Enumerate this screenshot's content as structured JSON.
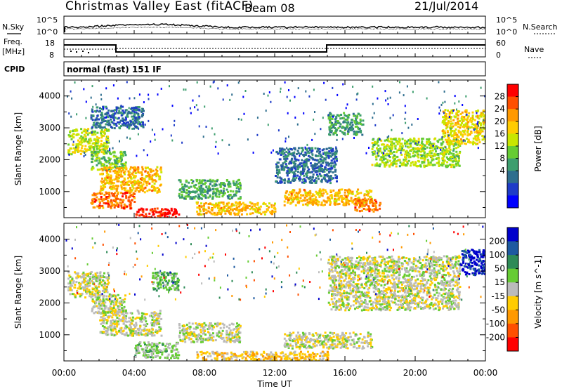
{
  "header": {
    "title": "Christmas Valley East (fitACF)",
    "beam": "Beam 08",
    "date": "21/Jul/2014"
  },
  "params": {
    "nsky_label": "N.Sky",
    "nsearch_label": "N.Search",
    "freq_label_1": "Freq.",
    "freq_label_2": "[MHz]",
    "nave_label": "Nave",
    "cpid_label": "CPID",
    "cpid_value": "normal (fast) 151 IF",
    "noise_ticks_left": [
      "10^5",
      "10^0"
    ],
    "noise_ticks_right": [
      "10^5",
      "10^0"
    ],
    "freq_ticks": [
      "18",
      "8"
    ],
    "nave_ticks": [
      "60",
      "0"
    ]
  },
  "colorbars": {
    "power": {
      "label": "Power [dB]",
      "ticks": [
        "28",
        "24",
        "20",
        "16",
        "12",
        "8",
        "4"
      ],
      "colors": [
        "#ff0000",
        "#ff5000",
        "#ff9900",
        "#ffcc00",
        "#c8e600",
        "#66cc33",
        "#3d9e6e",
        "#2e6e8e",
        "#1e3cc8",
        "#0000ff"
      ]
    },
    "velocity": {
      "label": "Velocity [m s^-1]",
      "ticks": [
        "200",
        "100",
        "50",
        "15",
        "-15",
        "-50",
        "-100",
        "-200"
      ],
      "colors": [
        "#0000cc",
        "#1e5aa0",
        "#2e8b57",
        "#66cc33",
        "#bbbbbb",
        "#ffcc00",
        "#ff9900",
        "#ff5000",
        "#ff0000"
      ]
    }
  },
  "chart_data": [
    {
      "type": "heatmap",
      "title": "Power",
      "xlabel": "Time UT",
      "ylabel": "Slant Range [km]",
      "x_ticks": [
        "00:00",
        "04:00",
        "08:00",
        "12:00",
        "16:00",
        "20:00",
        "00:00"
      ],
      "y_ticks": [
        1000,
        2000,
        3000,
        4000
      ],
      "xlim_hours": [
        0,
        24
      ],
      "ylim_km": [
        180,
        4500
      ],
      "scatter_regions": [
        {
          "t": [
            0.2,
            2.5
          ],
          "r": [
            2200,
            3000
          ],
          "value_db": 18
        },
        {
          "t": [
            1.5,
            3.5
          ],
          "r": [
            1700,
            2300
          ],
          "value_db": 14
        },
        {
          "t": [
            1.5,
            4.5
          ],
          "r": [
            3000,
            3700
          ],
          "value_db": 8
        },
        {
          "t": [
            2.0,
            5.5
          ],
          "r": [
            1000,
            1800
          ],
          "value_db": 22
        },
        {
          "t": [
            1.5,
            4.0
          ],
          "r": [
            500,
            1000
          ],
          "value_db": 26
        },
        {
          "t": [
            4.0,
            6.5
          ],
          "r": [
            200,
            500
          ],
          "value_db": 30
        },
        {
          "t": [
            6.5,
            10.0
          ],
          "r": [
            800,
            1400
          ],
          "value_db": 12
        },
        {
          "t": [
            7.5,
            12.0
          ],
          "r": [
            300,
            700
          ],
          "value_db": 22
        },
        {
          "t": [
            12.5,
            17.5
          ],
          "r": [
            600,
            1100
          ],
          "value_db": 22
        },
        {
          "t": [
            16.5,
            18.0
          ],
          "r": [
            400,
            800
          ],
          "value_db": 26
        },
        {
          "t": [
            12.0,
            15.5
          ],
          "r": [
            1300,
            2400
          ],
          "value_db": 8
        },
        {
          "t": [
            15.0,
            17.0
          ],
          "r": [
            2800,
            3500
          ],
          "value_db": 12
        },
        {
          "t": [
            17.5,
            22.5
          ],
          "r": [
            1800,
            2700
          ],
          "value_db": 16
        },
        {
          "t": [
            21.5,
            24.0
          ],
          "r": [
            2500,
            3600
          ],
          "value_db": 20
        }
      ]
    },
    {
      "type": "heatmap",
      "title": "Velocity",
      "xlabel": "Time UT",
      "ylabel": "Slant Range [km]",
      "x_ticks": [
        "00:00",
        "04:00",
        "08:00",
        "12:00",
        "16:00",
        "20:00",
        "00:00"
      ],
      "y_ticks": [
        1000,
        2000,
        3000,
        4000
      ],
      "xlim_hours": [
        0,
        24
      ],
      "ylim_km": [
        180,
        4500
      ],
      "scatter_regions": [
        {
          "t": [
            0.2,
            2.5
          ],
          "r": [
            2200,
            3000
          ],
          "value_ms": 0
        },
        {
          "t": [
            1.5,
            3.5
          ],
          "r": [
            1700,
            2300
          ],
          "value_ms": 0
        },
        {
          "t": [
            2.0,
            5.5
          ],
          "r": [
            1000,
            1800
          ],
          "value_ms": 0
        },
        {
          "t": [
            4.0,
            6.5
          ],
          "r": [
            300,
            800
          ],
          "value_ms": 40
        },
        {
          "t": [
            5.0,
            6.5
          ],
          "r": [
            2400,
            3000
          ],
          "value_ms": 70
        },
        {
          "t": [
            6.5,
            10.0
          ],
          "r": [
            800,
            1400
          ],
          "value_ms": 0
        },
        {
          "t": [
            7.5,
            15.0
          ],
          "r": [
            200,
            500
          ],
          "value_ms": -60
        },
        {
          "t": [
            12.5,
            17.5
          ],
          "r": [
            600,
            1100
          ],
          "value_ms": 0
        },
        {
          "t": [
            15.0,
            22.5
          ],
          "r": [
            1800,
            3500
          ],
          "value_ms": 0
        },
        {
          "t": [
            22.5,
            24.0
          ],
          "r": [
            2900,
            3700
          ],
          "value_ms": 220
        }
      ]
    }
  ]
}
